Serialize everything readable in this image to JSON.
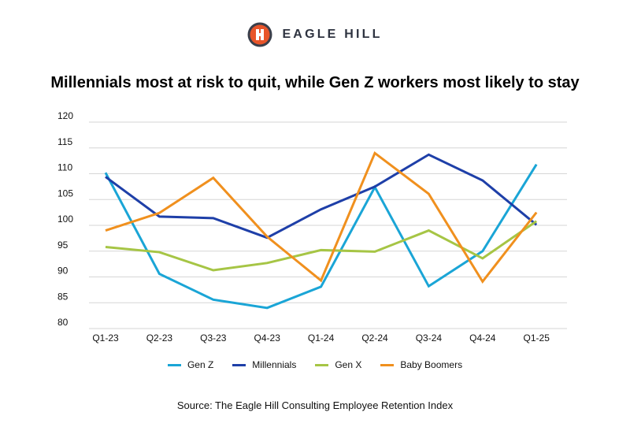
{
  "header": {
    "logo_text": "EAGLE HILL",
    "logo_icon": "eagle-hill-logo-icon",
    "logo_color": "#e8552a",
    "logo_ring_color": "#3a3f4b"
  },
  "chart_data": {
    "type": "line",
    "title": "Millennials most at risk to quit, while Gen Z workers most likely to stay",
    "xlabel": "",
    "ylabel": "",
    "categories": [
      "Q1-23",
      "Q2-23",
      "Q3-23",
      "Q4-23",
      "Q1-24",
      "Q2-24",
      "Q3-24",
      "Q4-24",
      "Q1-25"
    ],
    "yticks": [
      80,
      85,
      90,
      95,
      100,
      105,
      110,
      115,
      120
    ],
    "ylim": [
      80,
      120
    ],
    "grid": true,
    "legend_position": "bottom",
    "series": [
      {
        "name": "Gen Z",
        "color": "#1aa5d6",
        "values": [
          110.2,
          90.6,
          85.6,
          84.0,
          88.1,
          107.4,
          88.2,
          95.0,
          111.8
        ]
      },
      {
        "name": "Millennials",
        "color": "#1e3fa8",
        "values": [
          109.4,
          101.7,
          101.4,
          97.6,
          103.1,
          107.5,
          113.7,
          108.7,
          100.1
        ]
      },
      {
        "name": "Gen X",
        "color": "#a6c545",
        "values": [
          95.8,
          94.8,
          91.3,
          92.7,
          95.2,
          94.9,
          99.0,
          93.6,
          100.8
        ]
      },
      {
        "name": "Baby Boomers",
        "color": "#f0901e",
        "values": [
          99.0,
          102.4,
          109.2,
          97.8,
          89.3,
          114.0,
          106.1,
          89.1,
          102.5
        ]
      }
    ]
  },
  "footer": {
    "source": "Source: The Eagle Hill Consulting Employee Retention Index"
  }
}
